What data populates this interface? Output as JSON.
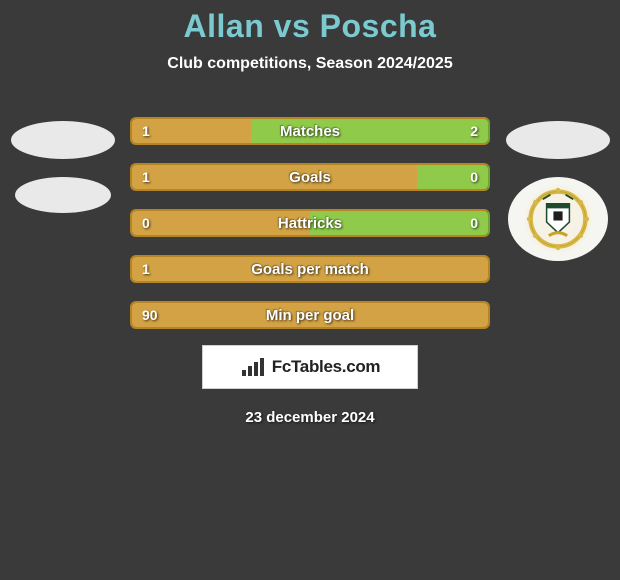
{
  "title": "Allan vs Poscha",
  "subtitle": "Club competitions, Season 2024/2025",
  "date": "23 december 2024",
  "logo_text": "FcTables.com",
  "colors": {
    "left_fill": "#d2a244",
    "right_fill": "#8fca4a",
    "border_left": "#b58423",
    "border_right": "#6fa62f",
    "title_color": "#7bcad0",
    "bg": "#3a3a3a"
  },
  "rows": [
    {
      "label": "Matches",
      "left": "1",
      "right": "2",
      "left_pct": 33.3,
      "right_pct": 66.7
    },
    {
      "label": "Goals",
      "left": "1",
      "right": "0",
      "left_pct": 80.0,
      "right_pct": 20.0
    },
    {
      "label": "Hattricks",
      "left": "0",
      "right": "0",
      "left_pct": 50.0,
      "right_pct": 50.0
    },
    {
      "label": "Goals per match",
      "left": "1",
      "right": "",
      "left_pct": 100.0,
      "right_pct": 0.0
    },
    {
      "label": "Min per goal",
      "left": "90",
      "right": "",
      "left_pct": 100.0,
      "right_pct": 0.0
    }
  ]
}
